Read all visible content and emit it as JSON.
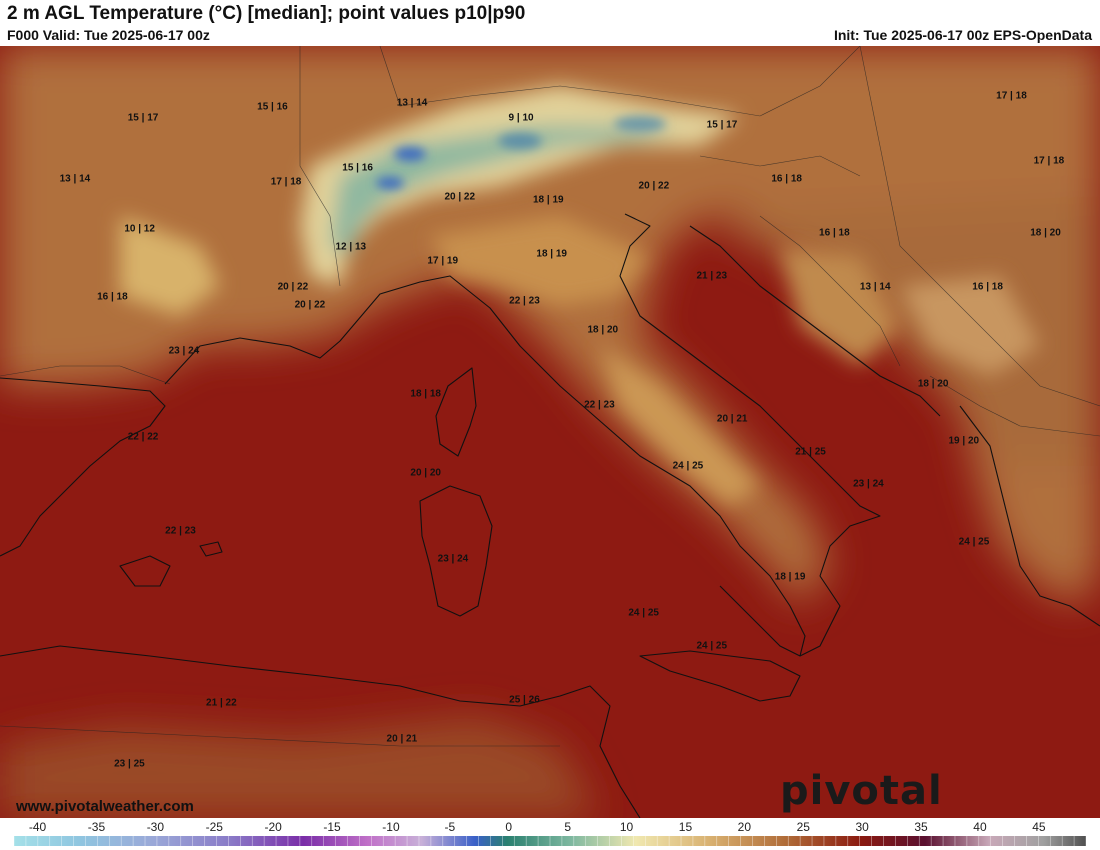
{
  "header": {
    "title": "2 m AGL Temperature (°C) [median]; point values p10|p90",
    "valid": "F000 Valid: Tue 2025-06-17 00z",
    "init": "Init: Tue 2025-06-17 00z EPS-OpenData"
  },
  "map": {
    "region": "Western/Central Mediterranean & Italy",
    "point_values": [
      {
        "label": "15 | 17",
        "lon": -0.6,
        "lat": 47.0
      },
      {
        "label": "15 | 16",
        "lon": 3.2,
        "lat": 47.3
      },
      {
        "label": "13 | 14",
        "lon": 7.3,
        "lat": 47.4
      },
      {
        "label": "9 | 10",
        "lon": 10.5,
        "lat": 47.0
      },
      {
        "label": "15 | 17",
        "lon": 16.4,
        "lat": 46.8
      },
      {
        "label": "17 | 18",
        "lon": 24.9,
        "lat": 47.6
      },
      {
        "label": "13 | 14",
        "lon": -2.6,
        "lat": 45.3
      },
      {
        "label": "15 | 16",
        "lon": 5.7,
        "lat": 45.6
      },
      {
        "label": "17 | 18",
        "lon": 3.6,
        "lat": 45.2
      },
      {
        "label": "17 | 18",
        "lon": 26.0,
        "lat": 45.8
      },
      {
        "label": "20 | 22",
        "lon": 8.7,
        "lat": 44.8
      },
      {
        "label": "18 | 19",
        "lon": 11.3,
        "lat": 44.7
      },
      {
        "label": "20 | 22",
        "lon": 14.4,
        "lat": 45.1
      },
      {
        "label": "16 | 18",
        "lon": 18.3,
        "lat": 45.3
      },
      {
        "label": "10 | 12",
        "lon": -0.7,
        "lat": 43.9
      },
      {
        "label": "12 | 13",
        "lon": 5.5,
        "lat": 43.4
      },
      {
        "label": "17 | 19",
        "lon": 8.2,
        "lat": 43.0
      },
      {
        "label": "18 | 19",
        "lon": 11.4,
        "lat": 43.2
      },
      {
        "label": "16 | 18",
        "lon": 19.7,
        "lat": 43.8
      },
      {
        "label": "18 | 20",
        "lon": 25.9,
        "lat": 43.8
      },
      {
        "label": "21 | 23",
        "lon": 16.1,
        "lat": 42.6
      },
      {
        "label": "16 | 18",
        "lon": -1.5,
        "lat": 42.0
      },
      {
        "label": "20 | 22",
        "lon": 3.8,
        "lat": 42.3
      },
      {
        "label": "20 | 22",
        "lon": 4.3,
        "lat": 41.8
      },
      {
        "label": "22 | 23",
        "lon": 10.6,
        "lat": 41.9
      },
      {
        "label": "13 | 14",
        "lon": 20.9,
        "lat": 42.3
      },
      {
        "label": "16 | 18",
        "lon": 24.2,
        "lat": 42.3
      },
      {
        "label": "18 | 20",
        "lon": 12.9,
        "lat": 41.1
      },
      {
        "label": "23 | 24",
        "lon": 0.6,
        "lat": 40.5
      },
      {
        "label": "18 | 20",
        "lon": 22.6,
        "lat": 39.6
      },
      {
        "label": "18 | 18",
        "lon": 7.7,
        "lat": 39.3
      },
      {
        "label": "22 | 23",
        "lon": 12.8,
        "lat": 39.0
      },
      {
        "label": "20 | 21",
        "lon": 16.7,
        "lat": 38.6
      },
      {
        "label": "22 | 22",
        "lon": -0.6,
        "lat": 38.1
      },
      {
        "label": "19 | 20",
        "lon": 23.5,
        "lat": 38.0
      },
      {
        "label": "21 | 25",
        "lon": 19.0,
        "lat": 37.7
      },
      {
        "label": "24 | 25",
        "lon": 15.4,
        "lat": 37.3
      },
      {
        "label": "20 | 20",
        "lon": 7.7,
        "lat": 37.1
      },
      {
        "label": "23 | 24",
        "lon": 20.7,
        "lat": 36.8
      },
      {
        "label": "22 | 23",
        "lon": 0.5,
        "lat": 35.5
      },
      {
        "label": "24 | 25",
        "lon": 23.8,
        "lat": 35.2
      },
      {
        "label": "23 | 24",
        "lon": 8.5,
        "lat": 34.7
      },
      {
        "label": "18 | 19",
        "lon": 18.4,
        "lat": 34.2
      },
      {
        "label": "24 | 25",
        "lon": 14.1,
        "lat": 33.2
      },
      {
        "label": "24 | 25",
        "lon": 16.1,
        "lat": 32.3
      },
      {
        "label": "21 | 22",
        "lon": 1.7,
        "lat": 30.7
      },
      {
        "label": "25 | 26",
        "lon": 10.6,
        "lat": 30.8
      },
      {
        "label": "20 | 21",
        "lon": 7.0,
        "lat": 29.7
      },
      {
        "label": "23 | 25",
        "lon": -1.0,
        "lat": 29.0
      }
    ]
  },
  "branding": {
    "website": "www.pivotalweather.com",
    "logo_text": "pivotal weather"
  },
  "colorbar": {
    "unit": "°C",
    "ticks": [
      "-40",
      "-35",
      "-30",
      "-25",
      "-20",
      "-15",
      "-10",
      "-5",
      "0",
      "5",
      "10",
      "15",
      "20",
      "25",
      "30",
      "35",
      "40",
      "45"
    ],
    "min": -42,
    "max": 49
  }
}
